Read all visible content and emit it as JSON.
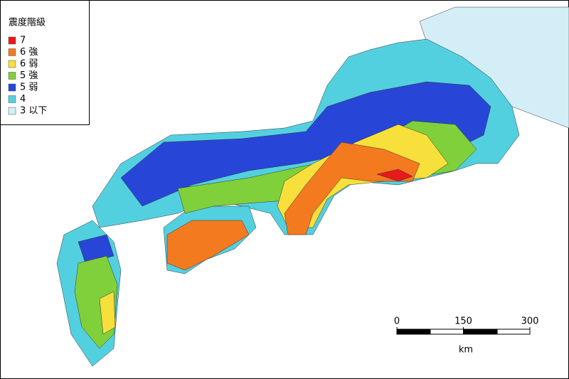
{
  "legend": {
    "title": "震度階級",
    "items": [
      {
        "label": "7",
        "color": "#e8191b"
      },
      {
        "label": "6 強",
        "color": "#f47a20"
      },
      {
        "label": "6 弱",
        "color": "#f7e03b"
      },
      {
        "label": "5 強",
        "color": "#7fd03a"
      },
      {
        "label": "5 弱",
        "color": "#2746d8"
      },
      {
        "label": "4",
        "color": "#53d0e0"
      },
      {
        "label": "3 以下",
        "color": "#d4eef8"
      }
    ]
  },
  "scale_bar": {
    "ticks": [
      0,
      150,
      300
    ],
    "unit": "km"
  }
}
